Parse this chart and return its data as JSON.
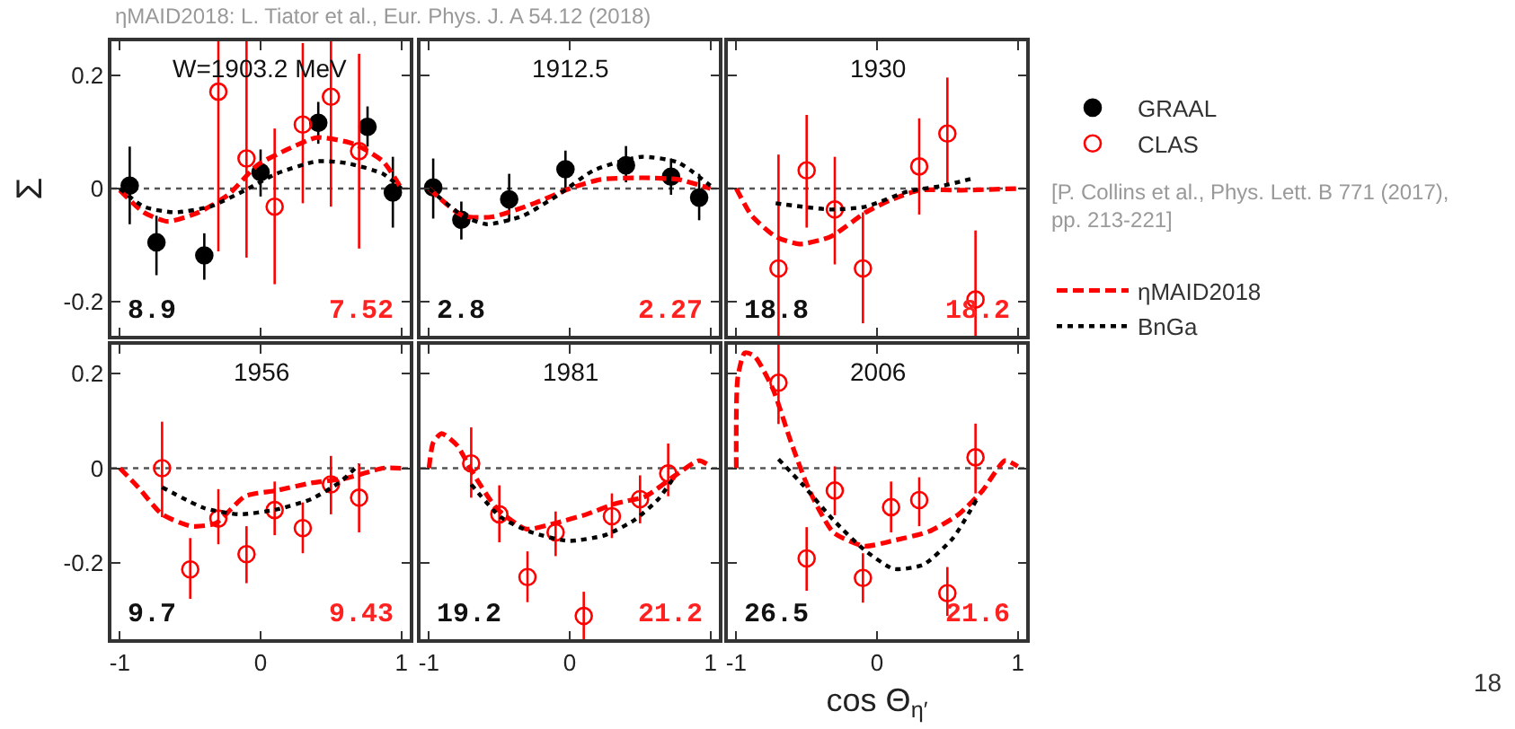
{
  "chart_data": [
    {
      "type": "scatter",
      "title": "W=1903.2 MeV",
      "ylabel": "Σ",
      "xlim": [
        -1.06,
        1.06
      ],
      "ylim": [
        -0.26,
        0.26
      ],
      "xticks": [
        -1,
        0,
        1
      ],
      "yticks": [
        -0.2,
        0,
        0.2
      ],
      "tick_labels": "y",
      "legend": "right",
      "grid": false,
      "ref_lines": [
        {
          "axis": "y",
          "value": 0,
          "color": "#555555",
          "line_style": "dotted"
        }
      ],
      "annotations": [
        "8.9",
        "7.52",
        "ηMAID2018: L. Tiator et al., Eur. Phys. J. A 54.12 (2018)"
      ],
      "series": [
        {
          "name": "GRAAL",
          "color": "#000000",
          "marker": "circle",
          "x": [
            -0.93,
            -0.74,
            -0.4,
            0,
            0.41,
            0.76,
            0.94
          ],
          "values": [
            0.005,
            -0.095,
            -0.118,
            0.029,
            0.116,
            0.109,
            -0.007
          ],
          "errors": [
            [
              -0.063,
              0.074
            ],
            [
              -0.153,
              -0.048
            ],
            [
              -0.161,
              -0.079
            ],
            [
              -0.014,
              0.069
            ],
            [
              0.079,
              0.153
            ],
            [
              0.074,
              0.145
            ],
            [
              -0.069,
              0.056
            ]
          ]
        },
        {
          "name": "CLAS",
          "color": "#ff0000",
          "marker": "circle-open",
          "x": [
            -0.3,
            -0.1,
            0.1,
            0.3,
            0.5,
            0.7
          ],
          "values": [
            0.171,
            0.053,
            -0.032,
            0.113,
            0.162,
            0.066
          ],
          "errors": [
            [
              -0.111,
              0.26
            ],
            [
              -0.122,
              0.26
            ],
            [
              -0.169,
              0.106
            ],
            [
              -0.026,
              0.257
            ],
            [
              -0.032,
              0.26
            ],
            [
              -0.106,
              0.238
            ]
          ]
        },
        {
          "name": "ηMAID2018",
          "type": "line",
          "color": "#ff0000",
          "line_style": "dashed",
          "marker": "none",
          "x": [
            -1,
            -0.83,
            -0.66,
            -0.44,
            -0.23,
            -0.02,
            0.19,
            0.4,
            0.66,
            0.87,
            1
          ],
          "values": [
            -0.003,
            -0.042,
            -0.058,
            -0.042,
            -0.011,
            0.042,
            0.069,
            0.09,
            0.079,
            0.048,
            0
          ]
        },
        {
          "name": "BnGa",
          "type": "line",
          "color": "#000000",
          "line_style": "dotted",
          "marker": "none",
          "x": [
            -1,
            -0.83,
            -0.61,
            -0.36,
            -0.11,
            0.11,
            0.4,
            0.61,
            0.87,
            1
          ],
          "values": [
            0,
            -0.032,
            -0.042,
            -0.032,
            -0.003,
            0.026,
            0.048,
            0.045,
            0.026,
            0
          ]
        }
      ]
    },
    {
      "type": "scatter",
      "title": "1912.5",
      "xlim": [
        -1.06,
        1.06
      ],
      "ylim": [
        -0.26,
        0.26
      ],
      "xticks": [
        -1,
        0,
        1
      ],
      "yticks": [
        -0.2,
        0,
        0.2
      ],
      "tick_labels": false,
      "grid": false,
      "ref_lines": [
        {
          "axis": "y",
          "value": 0,
          "color": "#555555",
          "line_style": "dotted"
        }
      ],
      "annotations": [
        "2.8",
        "2.27"
      ],
      "series": [
        {
          "color": "#000000",
          "marker": "circle",
          "x": [
            -0.97,
            -0.77,
            -0.43,
            -0.03,
            0.4,
            0.72,
            0.92
          ],
          "values": [
            0.002,
            -0.055,
            -0.019,
            0.034,
            0.041,
            0.021,
            -0.016
          ],
          "errors": [
            [
              -0.053,
              0.053
            ],
            [
              -0.09,
              -0.023
            ],
            [
              -0.058,
              0.026
            ],
            [
              -0.003,
              0.067
            ],
            [
              0.011,
              0.075
            ],
            [
              -0.011,
              0.053
            ],
            [
              -0.056,
              0.026
            ]
          ]
        },
        {
          "type": "line",
          "color": "#ff0000",
          "line_style": "dashed",
          "marker": "none",
          "x": [
            -1,
            -0.76,
            -0.55,
            -0.25,
            0,
            0.22,
            0.51,
            0.77,
            1
          ],
          "values": [
            0,
            -0.048,
            -0.05,
            -0.026,
            0,
            0.016,
            0.019,
            0.016,
            0
          ]
        },
        {
          "type": "line",
          "color": "#000000",
          "line_style": "dotted",
          "marker": "none",
          "x": [
            -1,
            -0.76,
            -0.59,
            -0.33,
            -0.08,
            0.17,
            0.51,
            0.77,
            1
          ],
          "values": [
            0,
            -0.048,
            -0.063,
            -0.048,
            -0.011,
            0.032,
            0.056,
            0.046,
            0.005
          ]
        }
      ]
    },
    {
      "type": "scatter",
      "title": "1930",
      "xlim": [
        -1.06,
        1.06
      ],
      "ylim": [
        -0.26,
        0.26
      ],
      "xticks": [
        -1,
        0,
        1
      ],
      "yticks": [
        -0.2,
        0,
        0.2
      ],
      "tick_labels": false,
      "grid": false,
      "ref_lines": [
        {
          "axis": "y",
          "value": 0,
          "color": "#555555",
          "line_style": "dotted"
        }
      ],
      "annotations": [
        "18.8",
        "18.2",
        "[P. Collins et al., Phys. Lett. B 771 (2017),\npp. 213-221]"
      ],
      "series": [
        {
          "color": "#ff0000",
          "marker": "circle-open",
          "x": [
            -0.7,
            -0.5,
            -0.3,
            -0.1,
            0.3,
            0.5,
            0.7
          ],
          "values": [
            -0.141,
            0.032,
            -0.037,
            -0.141,
            0.039,
            0.097,
            -0.196
          ],
          "errors": [
            [
              -0.26,
              0.06
            ],
            [
              -0.069,
              0.13
            ],
            [
              -0.134,
              0.056
            ],
            [
              -0.238,
              -0.042
            ],
            [
              -0.046,
              0.124
            ],
            [
              0.005,
              0.196
            ],
            [
              -0.26,
              -0.074
            ]
          ]
        },
        {
          "type": "line",
          "color": "#ff0000",
          "line_style": "dashed",
          "marker": "none",
          "x": [
            -1,
            -0.89,
            -0.72,
            -0.55,
            -0.33,
            -0.08,
            0.09,
            0.3,
            0.6,
            1
          ],
          "values": [
            0,
            -0.048,
            -0.085,
            -0.098,
            -0.085,
            -0.042,
            -0.021,
            -0.003,
            -0.003,
            0
          ]
        },
        {
          "type": "line",
          "color": "#000000",
          "line_style": "dotted",
          "marker": "none",
          "x": [
            -0.72,
            -0.33,
            -0.08,
            0.22,
            0.47,
            0.68
          ],
          "values": [
            -0.026,
            -0.037,
            -0.032,
            -0.005,
            0.005,
            0.018
          ]
        }
      ]
    },
    {
      "type": "scatter",
      "title": "1956",
      "xlim": [
        -1.06,
        1.06
      ],
      "ylim": [
        -0.36,
        0.26
      ],
      "xticks": [
        -1,
        0,
        1
      ],
      "yticks": [
        -0.2,
        0,
        0.2
      ],
      "grid": false,
      "ref_lines": [
        {
          "axis": "y",
          "value": 0,
          "color": "#555555",
          "line_style": "dotted"
        }
      ],
      "annotations": [
        "9.7",
        "9.43"
      ],
      "series": [
        {
          "color": "#ff0000",
          "marker": "circle-open",
          "x": [
            -0.7,
            -0.5,
            -0.3,
            -0.1,
            0.1,
            0.3,
            0.5,
            0.7
          ],
          "values": [
            0,
            -0.213,
            -0.106,
            -0.181,
            -0.088,
            -0.126,
            -0.034,
            -0.062
          ],
          "errors": [
            [
              -0.103,
              0.098
            ],
            [
              -0.275,
              -0.147
            ],
            [
              -0.16,
              -0.044
            ],
            [
              -0.242,
              -0.122
            ],
            [
              -0.141,
              -0.028
            ],
            [
              -0.179,
              -0.072
            ],
            [
              -0.097,
              0.026
            ],
            [
              -0.135,
              0.01
            ]
          ]
        },
        {
          "type": "line",
          "color": "#ff0000",
          "line_style": "dashed",
          "marker": "none",
          "x": [
            -1,
            -0.87,
            -0.7,
            -0.49,
            -0.32,
            -0.11,
            0.11,
            0.36,
            0.61,
            0.87,
            1
          ],
          "values": [
            0,
            -0.04,
            -0.097,
            -0.122,
            -0.116,
            -0.059,
            -0.047,
            -0.031,
            -0.021,
            0,
            0
          ]
        },
        {
          "type": "line",
          "color": "#000000",
          "line_style": "dotted",
          "marker": "none",
          "x": [
            -0.7,
            -0.4,
            -0.15,
            0.11,
            0.36,
            0.57,
            0.7
          ],
          "values": [
            -0.04,
            -0.084,
            -0.097,
            -0.087,
            -0.065,
            -0.028,
            0.008
          ]
        }
      ]
    },
    {
      "type": "scatter",
      "title": "1981",
      "xlim": [
        -1.06,
        1.06
      ],
      "ylim": [
        -0.36,
        0.26
      ],
      "xticks": [
        -1,
        0,
        1
      ],
      "yticks": [
        -0.2,
        0,
        0.2
      ],
      "tick_labels": "x",
      "grid": false,
      "ref_lines": [
        {
          "axis": "y",
          "value": 0,
          "color": "#555555",
          "line_style": "dotted"
        }
      ],
      "annotations": [
        "19.2",
        "21.2"
      ],
      "series": [
        {
          "color": "#ff0000",
          "marker": "circle-open",
          "x": [
            -0.7,
            -0.5,
            -0.3,
            -0.1,
            0.1,
            0.3,
            0.5,
            0.7
          ],
          "values": [
            0.01,
            -0.097,
            -0.229,
            -0.135,
            -0.311,
            -0.101,
            -0.065,
            -0.011
          ],
          "errors": [
            [
              -0.062,
              0.086
            ],
            [
              -0.156,
              -0.036
            ],
            [
              -0.282,
              -0.175
            ],
            [
              -0.185,
              -0.091
            ],
            [
              -0.36,
              -0.26
            ],
            [
              -0.147,
              -0.053
            ],
            [
              -0.116,
              -0.015
            ],
            [
              -0.059,
              0.052
            ]
          ]
        },
        {
          "type": "line",
          "color": "#ff0000",
          "line_style": "dashed",
          "marker": "none",
          "x": [
            -1,
            -0.97,
            -0.91,
            -0.8,
            -0.69,
            -0.52,
            -0.31,
            -0.11,
            0.12,
            0.33,
            0.54,
            0.75,
            0.92,
            1
          ],
          "values": [
            0,
            0.054,
            0.073,
            0.048,
            -0.009,
            -0.084,
            -0.128,
            -0.116,
            -0.097,
            -0.074,
            -0.059,
            -0.015,
            0.016,
            0.004
          ]
        },
        {
          "type": "line",
          "color": "#000000",
          "line_style": "dotted",
          "marker": "none",
          "x": [
            -0.7,
            -0.49,
            -0.27,
            -0.01,
            0.25,
            0.46,
            0.63,
            0.75
          ],
          "values": [
            -0.034,
            -0.103,
            -0.135,
            -0.153,
            -0.141,
            -0.109,
            -0.065,
            -0.015
          ]
        }
      ]
    },
    {
      "type": "scatter",
      "title": "2006",
      "xlabel": "cos Θ$_{η′}$",
      "xlim": [
        -1.06,
        1.06
      ],
      "ylim": [
        -0.36,
        0.26
      ],
      "xticks": [
        -1,
        0,
        1
      ],
      "yticks": [
        -0.2,
        0,
        0.2
      ],
      "tick_labels": "x",
      "grid": false,
      "ref_lines": [
        {
          "axis": "y",
          "value": 0,
          "color": "#555555",
          "line_style": "dotted"
        }
      ],
      "annotations": [
        "26.5",
        "21.6",
        "18"
      ],
      "series": [
        {
          "color": "#ff0000",
          "marker": "circle-open",
          "x": [
            -0.7,
            -0.5,
            -0.3,
            -0.1,
            0.1,
            0.3,
            0.5,
            0.7
          ],
          "values": [
            0.18,
            -0.19,
            -0.047,
            -0.231,
            -0.082,
            -0.067,
            -0.263,
            0.023
          ],
          "errors": [
            [
              0.093,
              0.26
            ],
            [
              -0.258,
              -0.124
            ],
            [
              -0.099,
              0.004
            ],
            [
              -0.283,
              -0.179
            ],
            [
              -0.135,
              -0.028
            ],
            [
              -0.122,
              -0.019
            ],
            [
              -0.311,
              -0.208
            ],
            [
              -0.053,
              0.094
            ]
          ]
        },
        {
          "type": "line",
          "color": "#ff0000",
          "line_style": "dashed",
          "marker": "none",
          "x": [
            -1,
            -0.99,
            -0.94,
            -0.87,
            -0.74,
            -0.61,
            -0.48,
            -0.31,
            -0.09,
            0.12,
            0.37,
            0.58,
            0.75,
            0.91,
            1
          ],
          "values": [
            0,
            0.19,
            0.243,
            0.236,
            0.167,
            0.054,
            -0.047,
            -0.135,
            -0.164,
            -0.152,
            -0.133,
            -0.097,
            -0.047,
            0.016,
            0.004
          ]
        },
        {
          "type": "line",
          "color": "#000000",
          "line_style": "dotted",
          "marker": "none",
          "x": [
            -0.7,
            -0.53,
            -0.31,
            -0.09,
            0.12,
            0.33,
            0.54,
            0.71
          ],
          "values": [
            0.019,
            -0.034,
            -0.109,
            -0.172,
            -0.212,
            -0.203,
            -0.147,
            -0.065
          ]
        }
      ]
    }
  ]
}
